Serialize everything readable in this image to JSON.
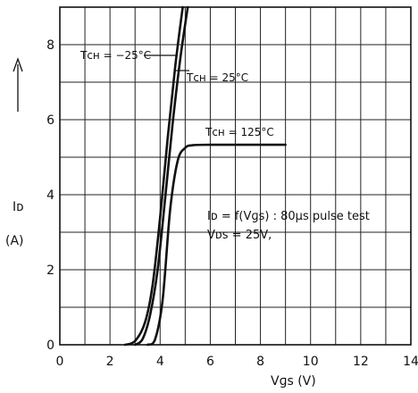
{
  "chart_data": {
    "type": "line",
    "title": "",
    "xlabel": "Vɡs (V)",
    "ylabel": "Iᴅ",
    "ylabel_unit": "(A)",
    "xlim": [
      0,
      14
    ],
    "ylim": [
      0,
      9
    ],
    "xticks": [
      0,
      2,
      4,
      6,
      8,
      10,
      12,
      14
    ],
    "yticks": [
      0,
      2,
      4,
      6,
      8
    ],
    "grid": true,
    "annotations": [
      "Iᴅ = f(Vɡs) : 80µs pulse test",
      "Vᴅs = 25V,"
    ],
    "series": [
      {
        "name": "Tᴄʜ = −25°C",
        "x": [
          2.6,
          3.0,
          3.4,
          3.7,
          4.0,
          4.3,
          4.6,
          4.9
        ],
        "y": [
          0.0,
          0.1,
          0.6,
          1.6,
          3.4,
          5.5,
          7.4,
          9.0
        ]
      },
      {
        "name": "Tᴄʜ = 25°C",
        "x": [
          3.0,
          3.3,
          3.6,
          3.9,
          4.2,
          4.5,
          4.8,
          5.1
        ],
        "y": [
          0.0,
          0.15,
          0.8,
          2.0,
          3.9,
          5.9,
          7.6,
          9.0
        ]
      },
      {
        "name": "Tᴄʜ = 125°C",
        "x": [
          3.5,
          3.8,
          4.1,
          4.4,
          4.7,
          5.0,
          5.3,
          6.0,
          7.0,
          9.0
        ],
        "y": [
          0.0,
          0.15,
          1.2,
          3.6,
          4.9,
          5.25,
          5.32,
          5.33,
          5.33,
          5.33
        ]
      }
    ]
  }
}
